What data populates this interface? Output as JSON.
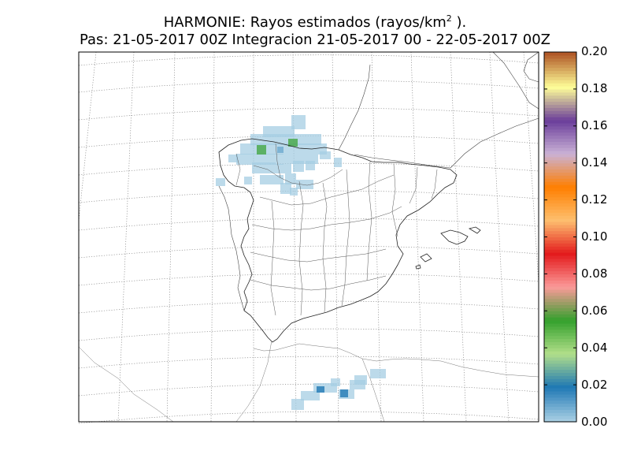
{
  "header": {
    "title_before_sup": "HARMONIE: Rayos estimados  (rayos/km",
    "title_sup": "2",
    "title_after_sup": " ).",
    "subtitle": "Pas: 21-05-2017 00Z Integracion 21-05-2017 00 - 22-05-2017 00Z"
  },
  "colorbar": {
    "min": 0.0,
    "max": 0.2,
    "tick_labels": [
      "0.00",
      "0.02",
      "0.04",
      "0.06",
      "0.08",
      "0.10",
      "0.12",
      "0.14",
      "0.16",
      "0.18",
      "0.20"
    ],
    "colors": [
      "#a6cee3",
      "#1f78b4",
      "#b2df8a",
      "#33a02c",
      "#fb9a99",
      "#e31a1c",
      "#fdbf6f",
      "#ff7f00",
      "#cab2d6",
      "#6a3d9a",
      "#ffff99",
      "#b15928"
    ]
  },
  "map": {
    "region": "Iberian Peninsula and Balearic Islands",
    "features": [
      "coastlines",
      "province borders",
      "country borders",
      "lat-lon graticule (dotted)"
    ],
    "lightning_areas": [
      {
        "region": "Galicia / Asturias / Cantabria",
        "max_value": 0.06
      },
      {
        "region": "Northern Morocco (Rif)",
        "max_value": 0.02
      }
    ]
  }
}
